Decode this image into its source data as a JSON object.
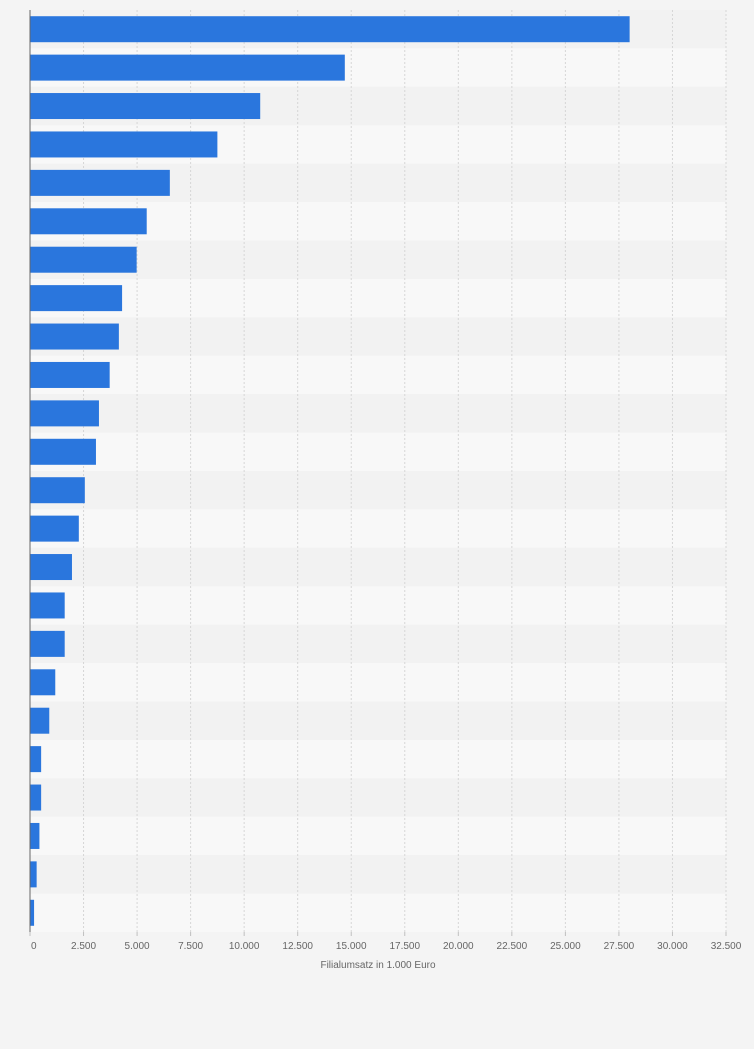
{
  "chart_data": {
    "type": "bar",
    "orientation": "horizontal",
    "title": "",
    "xlabel": "Filialumsatz in 1.000 Euro",
    "ylabel": "",
    "xlim": [
      0,
      32500
    ],
    "grid": true,
    "bar_color": "#2a76dd",
    "x_ticks": [
      0,
      2500,
      5000,
      7500,
      10000,
      12500,
      15000,
      17500,
      20000,
      22500,
      25000,
      27500,
      30000,
      32500
    ],
    "x_tick_labels": [
      "0",
      "2.500",
      "5.000",
      "7.500",
      "10.000",
      "12.500",
      "15.000",
      "17.500",
      "20.000",
      "22.500",
      "25.000",
      "27.500",
      "30.000",
      "32.500"
    ],
    "values": [
      28000,
      14700,
      10750,
      8750,
      6530,
      5450,
      4980,
      4300,
      4150,
      3720,
      3220,
      3080,
      2560,
      2280,
      1960,
      1620,
      1620,
      1180,
      900,
      520,
      520,
      440,
      310,
      190
    ]
  }
}
